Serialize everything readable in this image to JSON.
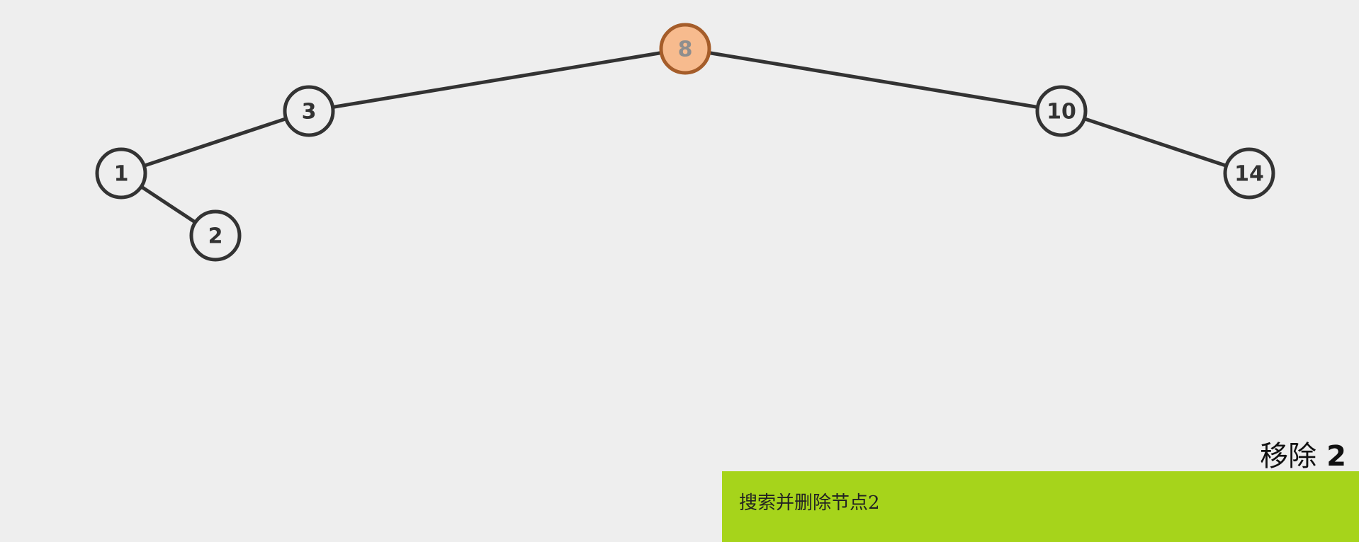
{
  "tree": {
    "nodes": [
      {
        "id": "n8",
        "label": "8",
        "highlighted": true,
        "parent": null,
        "side": null
      },
      {
        "id": "n3",
        "label": "3",
        "highlighted": false,
        "parent": "n8",
        "side": "left"
      },
      {
        "id": "n10",
        "label": "10",
        "highlighted": false,
        "parent": "n8",
        "side": "right"
      },
      {
        "id": "n1",
        "label": "1",
        "highlighted": false,
        "parent": "n3",
        "side": "left"
      },
      {
        "id": "n14",
        "label": "14",
        "highlighted": false,
        "parent": "n10",
        "side": "right"
      },
      {
        "id": "n2",
        "label": "2",
        "highlighted": false,
        "parent": "n1",
        "side": "right"
      }
    ]
  },
  "action": {
    "verb": "移除",
    "value": "2"
  },
  "status": {
    "message": "搜索并删除节点2"
  },
  "colors": {
    "background": "#eeeeee",
    "edge": "#333333",
    "highlight_fill": "#f7bb8e",
    "highlight_stroke": "#a55d2a",
    "status_panel": "#a6d41b"
  }
}
